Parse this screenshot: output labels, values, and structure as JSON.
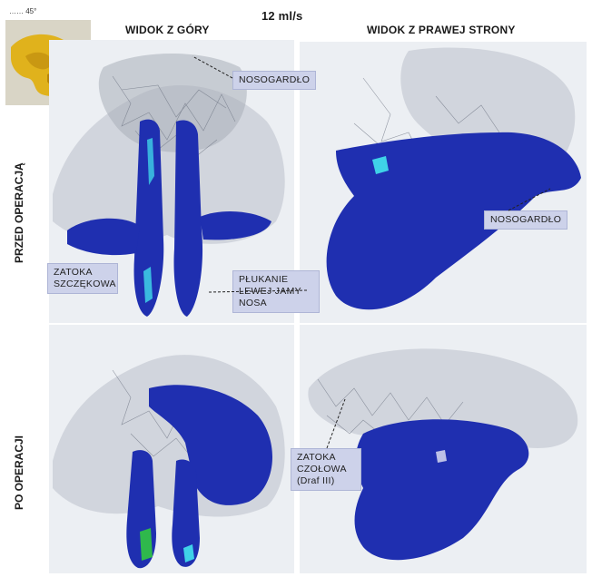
{
  "thumbnail_label": "…… 45°",
  "flow_rate": "12 ml/s",
  "column_headers": {
    "top_view": "WIDOK Z GÓRY",
    "right_view": "WIDOK Z PRAWEJ STRONY"
  },
  "row_labels": {
    "before": "PRZED OPERACJĄ",
    "after": "PO OPERACJI"
  },
  "callouts": {
    "nasopharynx_top": "NOSOGARDŁO",
    "nasopharynx_right": "NOSOGARDŁO",
    "maxillary_sinus": "ZATOKA SZCZĘKOWA",
    "left_nostril_rinse": "PŁUKANIE LEWEJ JAMY NOSA",
    "frontal_sinus": "ZATOKA CZOŁOWA (Draf III)"
  },
  "colors": {
    "mucosa_blue": "#1f2fb0",
    "mesh_gray": "#9aa0aa",
    "callout_bg": "#cdd2ea",
    "panel_bg": "#eceff3",
    "highlight_cyan": "#3fd2e8",
    "highlight_green": "#2fb84c",
    "thumbnail_yellow": "#e0b21c"
  }
}
